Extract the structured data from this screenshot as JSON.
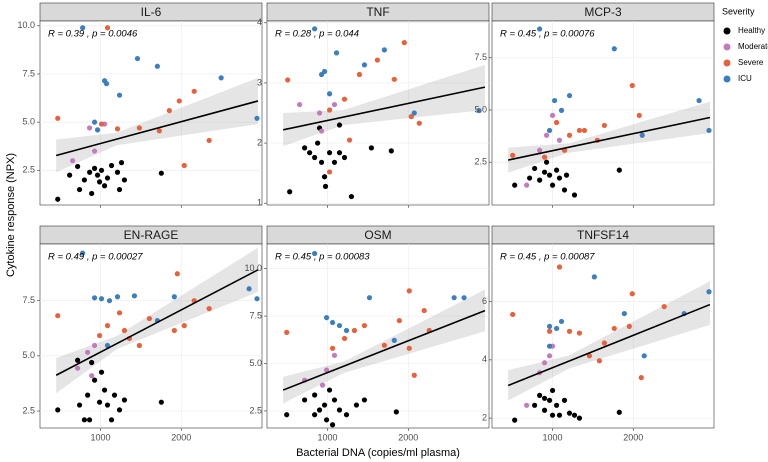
{
  "chart_data": [
    {
      "type": "scatter",
      "title": "IL-6",
      "annotation": "R = 0.39 , p = 0.0046",
      "xlim": [
        250,
        3000
      ],
      "xticks": [
        1000,
        2000
      ],
      "ylim": [
        0.7,
        10.25
      ],
      "yticks": [
        2.5,
        {
          "value": 5,
          "label": "5.0"
        },
        7.5,
        {
          "value": 10,
          "label": "10.0"
        }
      ],
      "series": [
        {
          "name": "Healthy",
          "color": "#000000",
          "x": [
            470,
            716,
            800,
            865,
            926,
            963,
            1012,
            1050,
            1086,
            1136,
            1210,
            1235,
            1260,
            1296,
            740,
            890,
            988,
            1753,
            617
          ],
          "values": [
            1.0,
            2.7,
            2.0,
            2.4,
            2.6,
            2.25,
            2.5,
            1.7,
            2.1,
            2.75,
            2.4,
            1.5,
            2.9,
            2.0,
            1.5,
            1.3,
            1.9,
            2.35,
            2.25
          ]
        },
        {
          "name": "Moderate",
          "color": "#c27bbd",
          "x": [
            654,
            864,
            926,
            1050
          ],
          "values": [
            3.0,
            4.7,
            3.5,
            4.9
          ]
        },
        {
          "name": "Severe",
          "color": "#e8613a",
          "x": [
            470,
            1012,
            1086,
            1481,
            1852,
            1975,
            2037,
            2345,
            1728,
            2160,
            1210
          ],
          "values": [
            5.2,
            4.9,
            9.9,
            4.7,
            5.6,
            6.1,
            2.75,
            4.05,
            4.55,
            6.6,
            4.65
          ]
        },
        {
          "name": "ICU",
          "color": "#3b7fc0",
          "x": [
            778,
            926,
            1050,
            1074,
            1235,
            1457,
            1704,
            2494,
            2938,
            963
          ],
          "values": [
            9.9,
            5.0,
            7.15,
            7.0,
            6.4,
            8.3,
            7.9,
            7.3,
            5.2,
            4.6
          ]
        }
      ],
      "trend": {
        "x": [
          450,
          2950
        ],
        "y": [
          3.27,
          6.1
        ]
      },
      "ci": {
        "x": [
          450,
          1200,
          2950
        ],
        "lower": [
          2.4,
          3.8,
          4.9
        ],
        "upper": [
          4.1,
          4.45,
          7.3
        ]
      }
    },
    {
      "type": "scatter",
      "title": "TNF",
      "annotation": "R = 0.28 , p = 0.044",
      "xlim": [
        250,
        3000
      ],
      "xticks": [
        1000,
        2000
      ],
      "ylim": [
        0.97,
        4.03
      ],
      "yticks": [
        1,
        2,
        3,
        4
      ],
      "series": [
        {
          "name": "Healthy",
          "color": "#000000",
          "x": [
            531,
            716,
            778,
            840,
            877,
            926,
            963,
            975,
            1025,
            1086,
            1148,
            1210,
            1296,
            1543,
            1790,
            901,
            1148
          ],
          "values": [
            1.19,
            1.92,
            1.84,
            1.76,
            2.0,
            1.68,
            1.44,
            1.28,
            1.84,
            1.68,
            1.84,
            1.76,
            1.11,
            1.92,
            1.87,
            2.25,
            2.3
          ]
        },
        {
          "name": "Moderate",
          "color": "#c27bbd",
          "x": [
            654,
            901,
            926,
            1086
          ],
          "values": [
            2.64,
            2.5,
            2.2,
            2.64
          ]
        },
        {
          "name": "Severe",
          "color": "#e8613a",
          "x": [
            506,
            1025,
            1210,
            1395,
            1617,
            1827,
            1951,
            2037,
            2136,
            1025,
            1272
          ],
          "values": [
            3.05,
            2.55,
            2.73,
            3.14,
            3.38,
            3.06,
            3.67,
            2.44,
            2.33,
            1.52,
            2.05
          ]
        },
        {
          "name": "ICU",
          "color": "#3b7fc0",
          "x": [
            840,
            926,
            963,
            1111,
            1457,
            1704,
            2074,
            2877,
            1025
          ],
          "values": [
            3.9,
            3.14,
            3.19,
            3.5,
            3.3,
            3.55,
            2.5,
            2.54,
            2.82
          ]
        }
      ],
      "trend": {
        "x": [
          450,
          2950
        ],
        "y": [
          2.22,
          2.93
        ]
      },
      "ci": {
        "x": [
          450,
          1200,
          2950
        ],
        "lower": [
          1.95,
          2.3,
          2.55
        ],
        "upper": [
          2.5,
          2.55,
          3.3
        ]
      }
    },
    {
      "type": "scatter",
      "title": "MCP-3",
      "annotation": "R = 0.45 , p = 0.00076",
      "xlim": [
        250,
        3000
      ],
      "xticks": [
        1000,
        2000
      ],
      "ylim": [
        0.45,
        9.26
      ],
      "yticks": [
        2.5,
        {
          "value": 5,
          "label": "5.0"
        },
        7.5
      ],
      "series": [
        {
          "name": "Healthy",
          "color": "#000000",
          "x": [
            531,
            778,
            840,
            901,
            963,
            1000,
            1050,
            1086,
            1148,
            1173,
            1272,
            716,
            926,
            1827
          ],
          "values": [
            1.4,
            2.2,
            1.64,
            2.02,
            1.88,
            1.4,
            2.12,
            1.74,
            1.17,
            1.88,
            0.93,
            1.74,
            2.5,
            2.12
          ]
        },
        {
          "name": "Moderate",
          "color": "#c27bbd",
          "x": [
            679,
            840,
            926,
            1000,
            1086
          ],
          "values": [
            1.4,
            3.07,
            3.79,
            4.74,
            3.55
          ]
        },
        {
          "name": "Severe",
          "color": "#e8613a",
          "x": [
            506,
            901,
            1050,
            1210,
            1333,
            1395,
            1642,
            1988,
            2074,
            1555,
            1148
          ],
          "values": [
            2.83,
            2.74,
            4.4,
            3.79,
            4.02,
            4.02,
            4.26,
            6.17,
            4.74,
            3.55,
            3.07
          ]
        },
        {
          "name": "ICU",
          "color": "#3b7fc0",
          "x": [
            840,
            963,
            1025,
            1111,
            1210,
            1765,
            2111,
            2815,
            2938
          ],
          "values": [
            8.88,
            4.02,
            5.45,
            4.98,
            5.69,
            7.93,
            3.79,
            5.45,
            4.02
          ]
        }
      ],
      "trend": {
        "x": [
          450,
          2950
        ],
        "y": [
          2.6,
          4.64
        ]
      },
      "ci": {
        "x": [
          450,
          1200,
          2950
        ],
        "lower": [
          2.0,
          2.95,
          3.9
        ],
        "upper": [
          3.2,
          3.4,
          5.4
        ]
      }
    },
    {
      "type": "scatter",
      "title": "EN-RAGE",
      "annotation": "R = 0.49 , p = 0.00027",
      "xlim": [
        250,
        3000
      ],
      "xticks": [
        1000,
        2000
      ],
      "ylim": [
        1.73,
        10.07
      ],
      "yticks": [
        2.5,
        {
          "value": 5,
          "label": "5.0"
        },
        7.5
      ],
      "series": [
        {
          "name": "Healthy",
          "color": "#000000",
          "x": [
            470,
            740,
            800,
            840,
            890,
            926,
            988,
            1012,
            1050,
            1086,
            1136,
            1173,
            1235,
            1296,
            864,
            716,
            1753
          ],
          "values": [
            2.55,
            2.77,
            2.1,
            3.22,
            4.7,
            3.9,
            2.9,
            4.26,
            3.45,
            2.77,
            2.1,
            3.22,
            2.55,
            3.0,
            2.1,
            4.8,
            2.9
          ]
        },
        {
          "name": "Moderate",
          "color": "#c27bbd",
          "x": [
            716,
            840,
            890,
            926
          ],
          "values": [
            4.44,
            5.16,
            4.1,
            5.47
          ]
        },
        {
          "name": "Severe",
          "color": "#e8613a",
          "x": [
            470,
            988,
            1086,
            1296,
            1358,
            1605,
            1914,
            1951,
            2037,
            2160,
            2345,
            1481,
            1235
          ],
          "values": [
            6.82,
            5.92,
            6.37,
            6.15,
            5.79,
            6.69,
            6.15,
            8.72,
            6.37,
            7.5,
            7.14,
            5.47,
            6.95
          ]
        },
        {
          "name": "ICU",
          "color": "#3b7fc0",
          "x": [
            778,
            926,
            1012,
            1111,
            1210,
            1420,
            1704,
            1914,
            2840,
            2938,
            1086
          ],
          "values": [
            9.66,
            7.63,
            7.59,
            7.5,
            7.68,
            7.72,
            6.6,
            7.68,
            8.04,
            7.59,
            5.47
          ]
        }
      ],
      "trend": {
        "x": [
          450,
          2950
        ],
        "y": [
          4.12,
          8.9
        ]
      },
      "ci": {
        "x": [
          450,
          1200,
          2950
        ],
        "lower": [
          3.3,
          5.3,
          7.9
        ],
        "upper": [
          4.9,
          5.9,
          9.9
        ]
      }
    },
    {
      "type": "scatter",
      "title": "OSM",
      "annotation": "R = 0.45 , p = 0.00083",
      "xlim": [
        250,
        3000
      ],
      "xticks": [
        1000,
        2000
      ],
      "ylim": [
        1.6,
        11.3
      ],
      "yticks": [
        2.5,
        {
          "value": 5,
          "label": "5.0"
        },
        7.5,
        {
          "value": 10,
          "label": "10.0"
        }
      ],
      "series": [
        {
          "name": "Healthy",
          "color": "#000000",
          "x": [
            494,
            716,
            840,
            901,
            963,
            988,
            1025,
            1086,
            1148,
            1235,
            1358,
            1062,
            1457,
            1852,
            840
          ],
          "values": [
            2.3,
            3.08,
            3.34,
            2.55,
            2.81,
            2.03,
            3.6,
            3.08,
            2.55,
            2.3,
            2.81,
            1.77,
            3.08,
            2.45,
            2.3
          ]
        },
        {
          "name": "Moderate",
          "color": "#c27bbd",
          "x": [
            716,
            938,
            1086,
            988
          ],
          "values": [
            4.12,
            3.86,
            5.43,
            4.65
          ]
        },
        {
          "name": "Severe",
          "color": "#e8613a",
          "x": [
            494,
            1062,
            1210,
            1333,
            1457,
            1704,
            1889,
            2012,
            2074,
            2197,
            2259,
            2012
          ],
          "values": [
            6.64,
            5.8,
            6.32,
            6.74,
            7.0,
            5.96,
            7.26,
            8.83,
            4.38,
            7.79,
            6.74,
            5.8
          ]
        },
        {
          "name": "ICU",
          "color": "#3b7fc0",
          "x": [
            840,
            988,
            1062,
            1148,
            1235,
            1519,
            1827,
            2568,
            2691
          ],
          "values": [
            10.8,
            7.42,
            7.16,
            7.0,
            6.74,
            8.47,
            6.22,
            8.47,
            8.47
          ]
        }
      ],
      "trend": {
        "x": [
          450,
          2950
        ],
        "y": [
          3.6,
          7.79
        ]
      },
      "ci": {
        "x": [
          450,
          1200,
          2950
        ],
        "lower": [
          2.9,
          4.5,
          6.7
        ],
        "upper": [
          4.3,
          5.1,
          8.9
        ]
      }
    },
    {
      "type": "scatter",
      "title": "TNFSF14",
      "annotation": "R = 0.45 , p = 0.00087",
      "xlim": [
        250,
        3000
      ],
      "xticks": [
        1000,
        2000
      ],
      "ylim": [
        1.66,
        7.98
      ],
      "yticks": [
        2,
        4,
        6
      ],
      "series": [
        {
          "name": "Healthy",
          "color": "#000000",
          "x": [
            531,
            778,
            840,
            901,
            963,
            1000,
            1050,
            1086,
            1148,
            1210,
            1272,
            1333,
            901,
            1827,
            1000
          ],
          "values": [
            1.93,
            2.44,
            2.78,
            2.27,
            2.61,
            2.95,
            2.44,
            2.1,
            2.61,
            2.17,
            2.1,
            2.0,
            2.68,
            2.2,
            2.1
          ]
        },
        {
          "name": "Moderate",
          "color": "#c27bbd",
          "x": [
            679,
            840,
            901,
            963,
            1000
          ],
          "values": [
            2.44,
            3.56,
            3.9,
            4.14,
            4.47
          ]
        },
        {
          "name": "Severe",
          "color": "#e8613a",
          "x": [
            506,
            963,
            1086,
            1210,
            1333,
            1457,
            1642,
            1765,
            1951,
            1988,
            2099,
            2383,
            1580
          ],
          "values": [
            5.56,
            4.98,
            7.19,
            4.98,
            4.92,
            4.14,
            4.58,
            5.08,
            5.15,
            6.27,
            3.39,
            5.83,
            3.97
          ]
        },
        {
          "name": "ICU",
          "color": "#3b7fc0",
          "x": [
            963,
            1050,
            1111,
            963,
            1518,
            1889,
            2136,
            2630,
            2938
          ],
          "values": [
            5.15,
            5.08,
            5.32,
            4.47,
            6.85,
            5.59,
            4.14,
            5.59,
            6.34
          ]
        }
      ],
      "trend": {
        "x": [
          450,
          2950
        ],
        "y": [
          3.12,
          5.9
        ]
      },
      "ci": {
        "x": [
          450,
          1200,
          2950
        ],
        "lower": [
          2.6,
          3.7,
          5.2
        ],
        "upper": [
          3.65,
          4.15,
          6.7
        ]
      }
    }
  ],
  "x_label": "Bacterial DNA (copies/ml plasma)",
  "y_label": "Cytokine response (NPX)",
  "legend_title": "Severity"
}
